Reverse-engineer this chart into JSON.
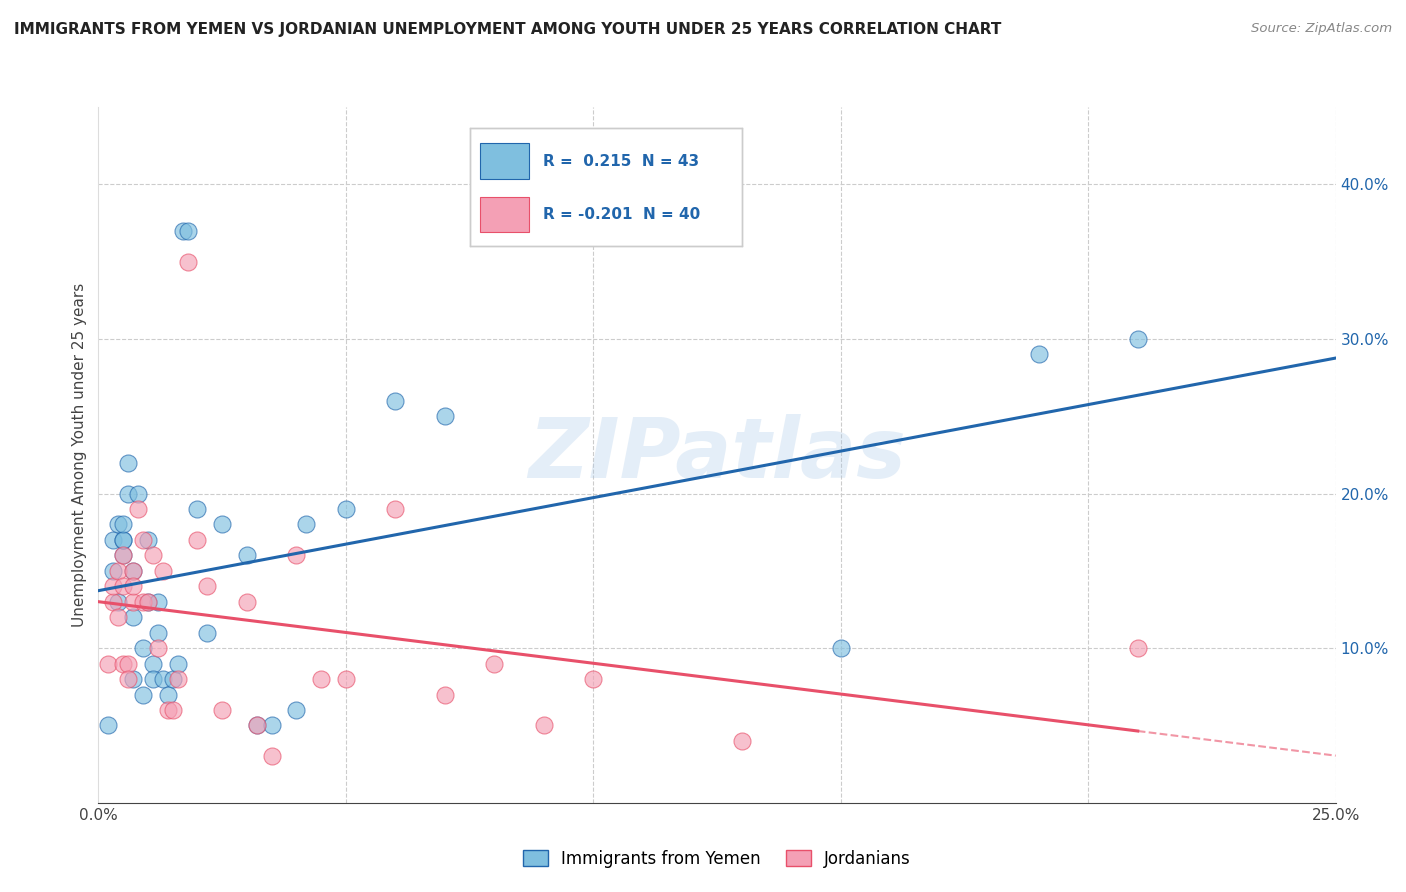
{
  "title": "IMMIGRANTS FROM YEMEN VS JORDANIAN UNEMPLOYMENT AMONG YOUTH UNDER 25 YEARS CORRELATION CHART",
  "source": "Source: ZipAtlas.com",
  "ylabel": "Unemployment Among Youth under 25 years",
  "legend_label1": "Immigrants from Yemen",
  "legend_label2": "Jordanians",
  "r1": 0.215,
  "n1": 43,
  "r2": -0.201,
  "n2": 40,
  "xlim": [
    0.0,
    0.25
  ],
  "ylim": [
    0.0,
    0.45
  ],
  "color_blue": "#7fbfdf",
  "color_pink": "#f4a0b5",
  "line_blue": "#2166ac",
  "line_pink": "#e8506a",
  "blue_x": [
    0.002,
    0.003,
    0.003,
    0.004,
    0.004,
    0.005,
    0.005,
    0.005,
    0.005,
    0.006,
    0.006,
    0.007,
    0.007,
    0.007,
    0.008,
    0.009,
    0.009,
    0.01,
    0.01,
    0.011,
    0.011,
    0.012,
    0.012,
    0.013,
    0.014,
    0.015,
    0.016,
    0.017,
    0.018,
    0.02,
    0.022,
    0.025,
    0.03,
    0.032,
    0.035,
    0.04,
    0.042,
    0.05,
    0.06,
    0.07,
    0.15,
    0.19,
    0.21
  ],
  "blue_y": [
    0.05,
    0.17,
    0.15,
    0.13,
    0.18,
    0.16,
    0.17,
    0.17,
    0.18,
    0.2,
    0.22,
    0.15,
    0.08,
    0.12,
    0.2,
    0.1,
    0.07,
    0.17,
    0.13,
    0.09,
    0.08,
    0.11,
    0.13,
    0.08,
    0.07,
    0.08,
    0.09,
    0.37,
    0.37,
    0.19,
    0.11,
    0.18,
    0.16,
    0.05,
    0.05,
    0.06,
    0.18,
    0.19,
    0.26,
    0.25,
    0.1,
    0.29,
    0.3
  ],
  "pink_x": [
    0.002,
    0.003,
    0.003,
    0.004,
    0.004,
    0.005,
    0.005,
    0.005,
    0.006,
    0.006,
    0.007,
    0.007,
    0.007,
    0.008,
    0.009,
    0.009,
    0.01,
    0.011,
    0.012,
    0.013,
    0.014,
    0.015,
    0.016,
    0.018,
    0.02,
    0.022,
    0.025,
    0.03,
    0.032,
    0.035,
    0.04,
    0.045,
    0.05,
    0.06,
    0.07,
    0.08,
    0.09,
    0.1,
    0.13,
    0.21
  ],
  "pink_y": [
    0.09,
    0.13,
    0.14,
    0.12,
    0.15,
    0.16,
    0.14,
    0.09,
    0.09,
    0.08,
    0.15,
    0.13,
    0.14,
    0.19,
    0.17,
    0.13,
    0.13,
    0.16,
    0.1,
    0.15,
    0.06,
    0.06,
    0.08,
    0.35,
    0.17,
    0.14,
    0.06,
    0.13,
    0.05,
    0.03,
    0.16,
    0.08,
    0.08,
    0.19,
    0.07,
    0.09,
    0.05,
    0.08,
    0.04,
    0.1
  ],
  "watermark": "ZIPatlas"
}
